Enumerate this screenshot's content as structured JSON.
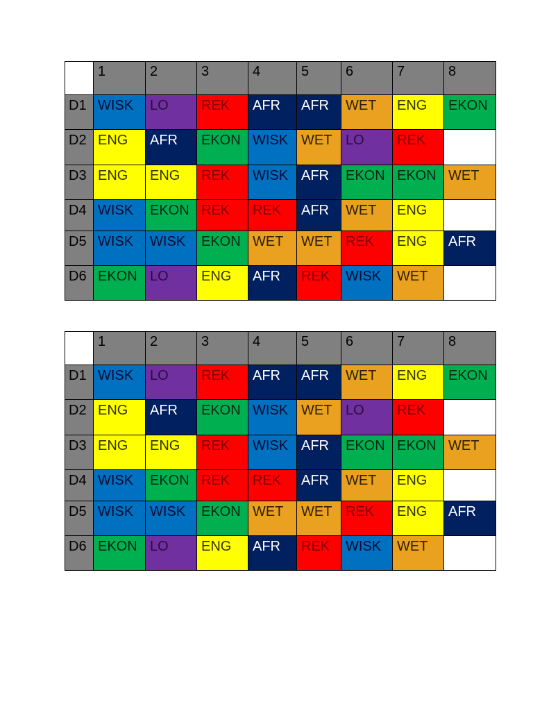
{
  "header_color": "#808080",
  "subject_colors": {
    "WISK": {
      "bg": "#0070c0",
      "fg": "#0b0b33"
    },
    "LO": {
      "bg": "#7030a0",
      "fg": "#2a0b40"
    },
    "REK": {
      "bg": "#ff0000",
      "fg": "#800000"
    },
    "AFR": {
      "bg": "#002060",
      "fg": "#ffffff"
    },
    "EKON": {
      "bg": "#00b050",
      "fg": "#002a12"
    },
    "WET": {
      "bg": "#e9a11f",
      "fg": "#2e2000"
    },
    "ENG": {
      "bg": "#ffff00",
      "fg": "#333300"
    }
  },
  "tables": [
    {
      "header": [
        "1",
        "2",
        "3",
        "4",
        "5",
        "6",
        "7",
        "8"
      ],
      "rows": [
        {
          "label": "D1",
          "cells": [
            "WISK",
            "LO",
            "REK",
            "AFR",
            "AFR",
            "WET",
            "ENG",
            "EKON"
          ]
        },
        {
          "label": "D2",
          "cells": [
            "ENG",
            "AFR",
            "EKON",
            "WISK",
            "WET",
            "LO",
            "REK",
            null
          ]
        },
        {
          "label": "D3",
          "cells": [
            "ENG",
            "ENG",
            "REK",
            "WISK",
            "AFR",
            "EKON",
            "EKON",
            "WET"
          ]
        },
        {
          "label": "D4",
          "cells": [
            "WISK",
            "EKON",
            "REK",
            "REK",
            "AFR",
            "WET",
            "ENG",
            null
          ]
        },
        {
          "label": "D5",
          "cells": [
            "WISK",
            "WISK",
            "EKON",
            "WET",
            "WET",
            "REK",
            "ENG",
            "AFR"
          ]
        },
        {
          "label": "D6",
          "cells": [
            "EKON",
            "LO",
            "ENG",
            "AFR",
            "REK",
            "WISK",
            "WET",
            null
          ]
        }
      ]
    },
    {
      "header": [
        "1",
        "2",
        "3",
        "4",
        "5",
        "6",
        "7",
        "8"
      ],
      "rows": [
        {
          "label": "D1",
          "cells": [
            "WISK",
            "LO",
            "REK",
            "AFR",
            "AFR",
            "WET",
            "ENG",
            "EKON"
          ]
        },
        {
          "label": "D2",
          "cells": [
            "ENG",
            "AFR",
            "EKON",
            "WISK",
            "WET",
            "LO",
            "REK",
            null
          ]
        },
        {
          "label": "D3",
          "cells": [
            "ENG",
            "ENG",
            "REK",
            "WISK",
            "AFR",
            "EKON",
            "EKON",
            "WET"
          ]
        },
        {
          "label": "D4",
          "cells": [
            "WISK",
            "EKON",
            "REK",
            "REK",
            "AFR",
            "WET",
            "ENG",
            null
          ]
        },
        {
          "label": "D5",
          "cells": [
            "WISK",
            "WISK",
            "EKON",
            "WET",
            "WET",
            "REK",
            "ENG",
            "AFR"
          ]
        },
        {
          "label": "D6",
          "cells": [
            "EKON",
            "LO",
            "ENG",
            "AFR",
            "REK",
            "WISK",
            "WET",
            null
          ]
        }
      ]
    }
  ]
}
